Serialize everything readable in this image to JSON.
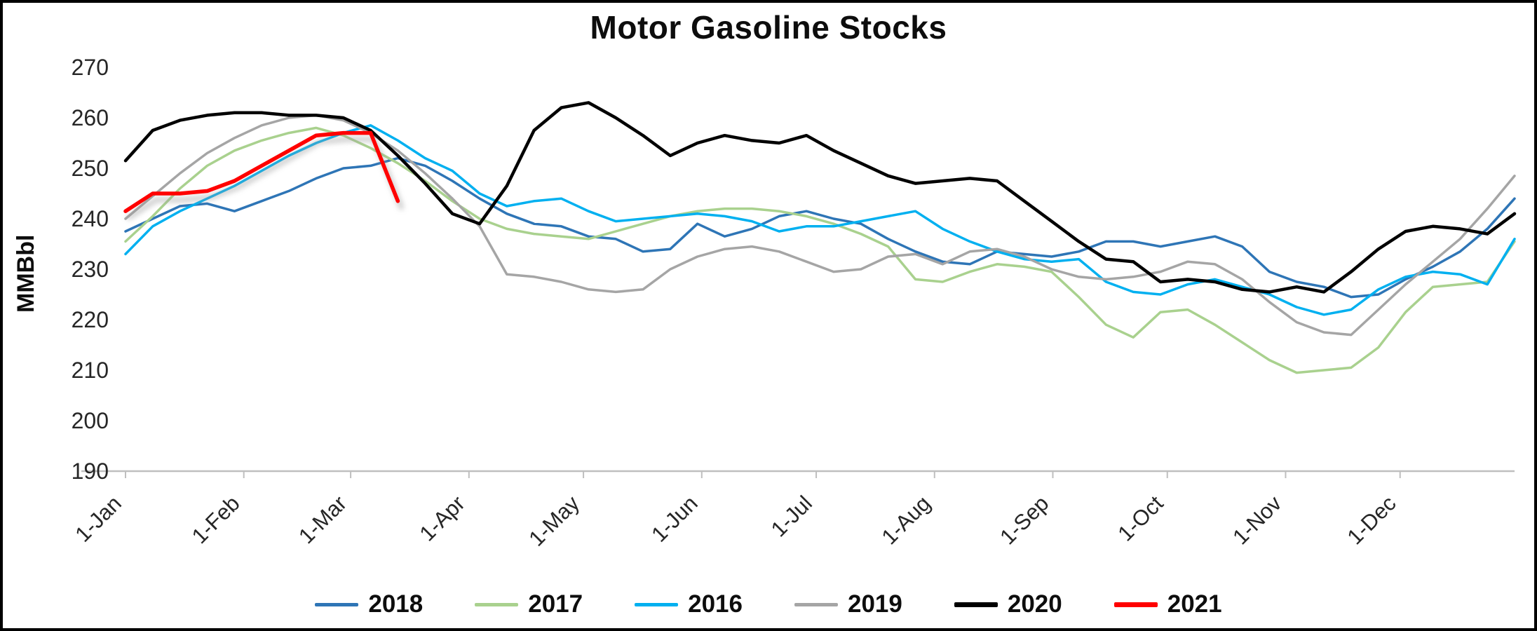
{
  "chart_data": {
    "type": "line",
    "title": "Motor Gasoline Stocks",
    "ylabel": "MMBbl",
    "ylim": [
      190,
      270
    ],
    "yticks": [
      190,
      200,
      210,
      220,
      230,
      240,
      250,
      260,
      270
    ],
    "grid": false,
    "legend_position": "bottom",
    "axis_color": "#BFBFBF",
    "tick_color": "#262626",
    "points_per_year": 52,
    "xticks": [
      {
        "label": "1-Jan",
        "doy": 1
      },
      {
        "label": "1-Feb",
        "doy": 32
      },
      {
        "label": "1-Mar",
        "doy": 60
      },
      {
        "label": "1-Apr",
        "doy": 91
      },
      {
        "label": "1-May",
        "doy": 121
      },
      {
        "label": "1-Jun",
        "doy": 152
      },
      {
        "label": "1-Jul",
        "doy": 182
      },
      {
        "label": "1-Aug",
        "doy": 213
      },
      {
        "label": "1-Sep",
        "doy": 244
      },
      {
        "label": "1-Oct",
        "doy": 274
      },
      {
        "label": "1-Nov",
        "doy": 305
      },
      {
        "label": "1-Dec",
        "doy": 335
      }
    ],
    "series": [
      {
        "name": "2018",
        "color": "#2E75B6",
        "width": 3.5,
        "shadow": false,
        "values": [
          237.5,
          240,
          242.5,
          243,
          241.5,
          243.5,
          245.5,
          248,
          250,
          250.5,
          252,
          250.5,
          247.5,
          244,
          241,
          239,
          238.5,
          236.5,
          236,
          233.5,
          234,
          239,
          236.5,
          238,
          240.5,
          241.5,
          240,
          239,
          236,
          233.5,
          231.5,
          231,
          233.5,
          233,
          232.5,
          233.5,
          235.5,
          235.5,
          234.5,
          235.5,
          236.5,
          234.5,
          229.5,
          227.5,
          226.5,
          224.5,
          225,
          228,
          230.5,
          233.5,
          238,
          244
        ]
      },
      {
        "name": "2017",
        "color": "#A9D18E",
        "width": 3.5,
        "shadow": false,
        "values": [
          235.5,
          240.5,
          246,
          250.5,
          253.5,
          255.5,
          257,
          258,
          256.5,
          254,
          251,
          247.5,
          243.5,
          240,
          238,
          237,
          236.5,
          236,
          237.5,
          239,
          240.5,
          241.5,
          242,
          242,
          241.5,
          240.5,
          239,
          237,
          234.5,
          228,
          227.5,
          229.5,
          231,
          230.5,
          229.5,
          224.5,
          219,
          216.5,
          221.5,
          222,
          219,
          215.5,
          212,
          209.5,
          210,
          210.5,
          214.5,
          221.5,
          226.5,
          227,
          227.5,
          235.5
        ]
      },
      {
        "name": "2016",
        "color": "#00B0F0",
        "width": 3.5,
        "shadow": false,
        "values": [
          233,
          238.5,
          241.5,
          244,
          246.5,
          249.5,
          252.5,
          255,
          257,
          258.5,
          255.5,
          252,
          249.5,
          245,
          242.5,
          243.5,
          244,
          241.5,
          239.5,
          240,
          240.5,
          241,
          240.5,
          239.5,
          237.5,
          238.5,
          238.5,
          239.5,
          240.5,
          241.5,
          238,
          235.5,
          233.5,
          232,
          231.5,
          232,
          227.5,
          225.5,
          225,
          227,
          228,
          226.5,
          225,
          222.5,
          221,
          222,
          226,
          228.5,
          229.5,
          229,
          227,
          236
        ]
      },
      {
        "name": "2019",
        "color": "#A5A5A5",
        "width": 3.5,
        "shadow": false,
        "values": [
          240,
          244.5,
          249,
          253,
          256,
          258.5,
          260,
          260.5,
          259.5,
          257,
          253.5,
          249,
          244,
          238.5,
          229,
          228.5,
          227.5,
          226,
          225.5,
          226,
          230,
          232.5,
          234,
          234.5,
          233.5,
          231.5,
          229.5,
          230,
          232.5,
          233,
          231,
          233.5,
          234,
          232.5,
          230,
          228.5,
          228,
          228.5,
          229.5,
          231.5,
          231,
          228,
          223.5,
          219.5,
          217.5,
          217,
          222,
          227,
          231.5,
          236,
          242,
          248.5
        ]
      },
      {
        "name": "2020",
        "color": "#000000",
        "width": 4.5,
        "shadow": false,
        "values": [
          251.5,
          257.5,
          259.5,
          260.5,
          261,
          261,
          260.5,
          260.5,
          260,
          257.5,
          252.5,
          247,
          241,
          239,
          246.5,
          257.5,
          262,
          263,
          260,
          256.5,
          252.5,
          255,
          256.5,
          255.5,
          255,
          256.5,
          253.5,
          251,
          248.5,
          247,
          247.5,
          248,
          247.5,
          243.5,
          239.5,
          235.5,
          232,
          231.5,
          227.5,
          228,
          227.5,
          226,
          225.5,
          226.5,
          225.5,
          229.5,
          234,
          237.5,
          238.5,
          238,
          237,
          241
        ]
      },
      {
        "name": "2021",
        "color": "#FF0000",
        "width": 5.5,
        "shadow": true,
        "values": [
          241.5,
          245,
          245,
          245.5,
          247.5,
          250.5,
          253.5,
          256.5,
          257,
          257,
          243.5
        ]
      }
    ]
  }
}
